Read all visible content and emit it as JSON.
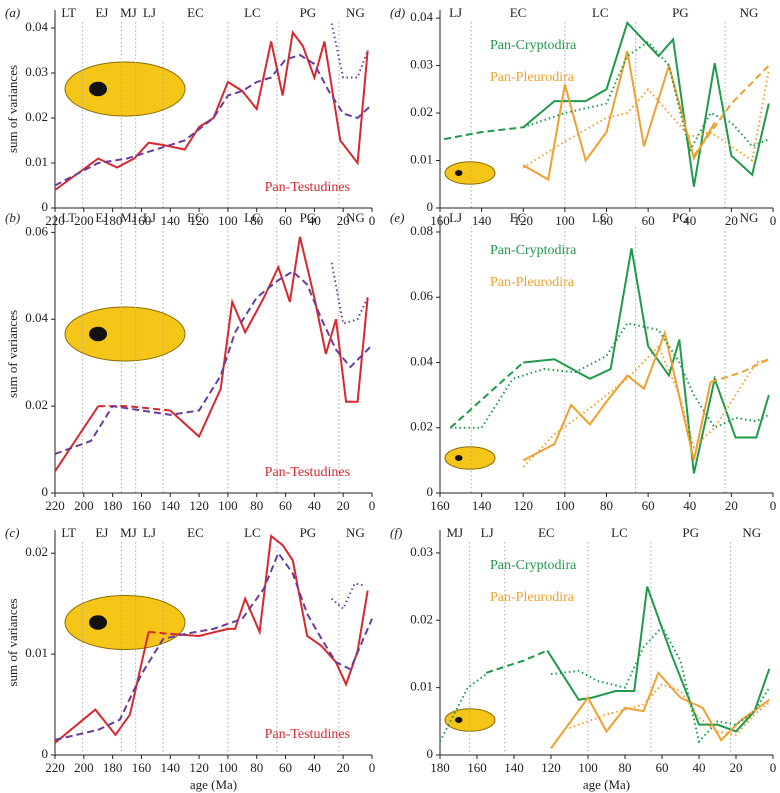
{
  "chart_data": [
    {
      "type": "line",
      "panel": "(a)",
      "ylabel": "sum of variances",
      "xlim": [
        220,
        0
      ],
      "xticks": [
        220,
        200,
        180,
        160,
        140,
        120,
        100,
        80,
        60,
        40,
        20,
        0
      ],
      "ylim": [
        0,
        0.044
      ],
      "yticks": [
        0,
        0.01,
        0.02,
        0.03,
        0.04
      ],
      "period_labels": [
        "LT",
        "EJ",
        "MJ",
        "LJ",
        "EC",
        "LC",
        "PG",
        "NG"
      ],
      "boundaries": [
        201,
        174,
        164,
        145,
        100,
        66,
        23
      ],
      "series": [
        {
          "name": "Pan-Testudines",
          "color": "#d7282f",
          "dash": "solid",
          "x": [
            220,
            190,
            177,
            165,
            155,
            145,
            130,
            120,
            110,
            100,
            90,
            80,
            70,
            62,
            55,
            48,
            40,
            33,
            22,
            10,
            3
          ],
          "values": [
            0.004,
            0.011,
            0.009,
            0.011,
            0.0145,
            0.014,
            0.013,
            0.018,
            0.02,
            0.028,
            0.026,
            0.022,
            0.037,
            0.025,
            0.039,
            0.036,
            0.029,
            0.037,
            0.015,
            0.01,
            0.035
          ]
        },
        {
          "color": "#6a3d9a",
          "dash": "dashed",
          "x": [
            220,
            190,
            170,
            150,
            130,
            110,
            100,
            90,
            80,
            70,
            60,
            50,
            40,
            30,
            20,
            10,
            0
          ],
          "values": [
            0.005,
            0.01,
            0.011,
            0.013,
            0.015,
            0.02,
            0.025,
            0.026,
            0.028,
            0.029,
            0.033,
            0.034,
            0.032,
            0.026,
            0.021,
            0.02,
            0.023
          ]
        },
        {
          "color": "#6a3d9a",
          "dash": "dotted",
          "x": [
            28,
            20,
            10,
            3
          ],
          "values": [
            0.041,
            0.029,
            0.029,
            0.035
          ]
        }
      ]
    },
    {
      "type": "line",
      "panel": "(b)",
      "ylabel": "sum of variances",
      "xlim": [
        220,
        0
      ],
      "xticks": [
        220,
        200,
        180,
        160,
        140,
        120,
        100,
        80,
        60,
        40,
        20,
        0
      ],
      "ylim": [
        0,
        0.064
      ],
      "yticks": [
        0,
        0.02,
        0.04,
        0.06
      ],
      "period_labels": [
        "LT",
        "EJ",
        "MJ",
        "LJ",
        "EC",
        "LC",
        "PG",
        "NG"
      ],
      "boundaries": [
        201,
        174,
        164,
        145,
        100,
        66,
        23
      ],
      "series": [
        {
          "name": "Pan-Testudines",
          "color": "#d7282f",
          "dash": "solid",
          "x": [
            220,
            190,
            165,
            140,
            120,
            105,
            97,
            88,
            75,
            65,
            57,
            50,
            40,
            32,
            25,
            18,
            10,
            3
          ],
          "values": [
            0.005,
            0.02,
            null,
            0.019,
            0.013,
            0.024,
            0.044,
            0.037,
            0.045,
            0.052,
            0.044,
            0.059,
            0.045,
            0.032,
            0.04,
            0.021,
            0.021,
            0.045
          ]
        },
        {
          "color": "#d7282f",
          "dash": "dashed",
          "x": [
            190,
            170,
            140
          ],
          "values": [
            0.02,
            0.02,
            0.019
          ]
        },
        {
          "color": "#6a3d9a",
          "dash": "dashed",
          "x": [
            220,
            195,
            180,
            160,
            140,
            120,
            105,
            95,
            80,
            65,
            55,
            45,
            35,
            25,
            15,
            0
          ],
          "values": [
            0.009,
            0.012,
            0.02,
            0.019,
            0.018,
            0.019,
            0.027,
            0.037,
            0.045,
            0.049,
            0.051,
            0.048,
            0.04,
            0.033,
            0.029,
            0.034
          ]
        },
        {
          "color": "#6a3d9a",
          "dash": "dotted",
          "x": [
            28,
            20,
            10,
            3
          ],
          "values": [
            0.053,
            0.039,
            0.04,
            0.045
          ]
        }
      ]
    },
    {
      "type": "line",
      "panel": "(c)",
      "ylabel": "sum of variances",
      "xlabel": "age (Ma)",
      "xlim": [
        220,
        0
      ],
      "xticks": [
        220,
        200,
        180,
        160,
        140,
        120,
        100,
        80,
        60,
        40,
        20,
        0
      ],
      "ylim": [
        0,
        0.0223
      ],
      "yticks": [
        0,
        0.01,
        0.02
      ],
      "period_labels": [
        "LT",
        "EJ",
        "MJ",
        "LJ",
        "EC",
        "LC",
        "PG",
        "NG"
      ],
      "boundaries": [
        201,
        174,
        164,
        145,
        100,
        66,
        23
      ],
      "series": [
        {
          "name": "Pan-Testudines",
          "color": "#d7282f",
          "dash": "solid",
          "x": [
            220,
            192,
            178,
            168,
            155,
            148,
            140,
            120,
            100,
            95,
            88,
            78,
            70,
            62,
            55,
            45,
            35,
            25,
            18,
            10,
            3
          ],
          "values": [
            0.0012,
            0.0045,
            0.002,
            0.004,
            0.0122,
            null,
            0.012,
            0.0118,
            0.0125,
            0.0125,
            0.0155,
            0.0122,
            0.0217,
            0.0208,
            0.0193,
            0.0118,
            0.0108,
            0.0092,
            0.007,
            0.0103,
            0.0163
          ]
        },
        {
          "color": "#d7282f",
          "dash": "dashed",
          "x": [
            155,
            140
          ],
          "values": [
            0.0122,
            0.012
          ]
        },
        {
          "color": "#6a3d9a",
          "dash": "dashed",
          "x": [
            220,
            190,
            175,
            160,
            145,
            130,
            110,
            90,
            75,
            65,
            55,
            45,
            35,
            25,
            15,
            0
          ],
          "values": [
            0.0015,
            0.0025,
            0.0035,
            0.008,
            0.0115,
            0.012,
            0.0125,
            0.0135,
            0.0165,
            0.02,
            0.018,
            0.014,
            0.0115,
            0.0092,
            0.0085,
            0.0135
          ]
        },
        {
          "color": "#6a3d9a",
          "dash": "dotted",
          "x": [
            28,
            20,
            12,
            5
          ],
          "values": [
            0.0155,
            0.0145,
            0.017,
            0.0168
          ]
        }
      ]
    },
    {
      "type": "line",
      "panel": "(d)",
      "xlim": [
        160,
        0
      ],
      "xticks": [
        160,
        140,
        120,
        100,
        80,
        60,
        40,
        20,
        0
      ],
      "ylim": [
        0,
        0.0417
      ],
      "yticks": [
        0,
        0.01,
        0.02,
        0.03,
        0.04
      ],
      "period_labels": [
        "LJ",
        "EC",
        "LC",
        "PG",
        "NG"
      ],
      "boundaries": [
        145,
        100,
        66,
        23
      ],
      "series": [
        {
          "name": "Pan-Cryptodira",
          "color": "#1f9a4b",
          "dash": "solid",
          "x": [
            120,
            105,
            90,
            80,
            70,
            55,
            48,
            38,
            28,
            20,
            10,
            2
          ],
          "values": [
            0.017,
            0.0225,
            0.0225,
            0.025,
            0.039,
            0.032,
            0.0355,
            0.0045,
            0.0305,
            0.011,
            0.007,
            0.022
          ]
        },
        {
          "name": "Pan-Pleurodira",
          "color": "#f0a030",
          "dash": "solid",
          "x": [
            120,
            108,
            100,
            90,
            80,
            70,
            62,
            50,
            38,
            28
          ],
          "values": [
            0.009,
            0.006,
            0.026,
            0.01,
            0.016,
            0.033,
            0.013,
            0.03,
            0.0105,
            0.018
          ]
        },
        {
          "color": "#1f9a4b",
          "dash": "dashed",
          "x": [
            158,
            140,
            120
          ],
          "values": [
            0.0145,
            0.016,
            0.017
          ]
        },
        {
          "color": "#1f9a4b",
          "dash": "dotted",
          "x": [
            120,
            100,
            80,
            70,
            60,
            50,
            40,
            30,
            20,
            10,
            2
          ],
          "values": [
            0.017,
            0.02,
            0.022,
            0.032,
            0.035,
            0.03,
            0.012,
            0.02,
            0.018,
            0.013,
            0.0145
          ]
        },
        {
          "color": "#f0a030",
          "dash": "dashed",
          "x": [
            38,
            20,
            2
          ],
          "values": [
            0.011,
            0.022,
            0.03
          ]
        },
        {
          "color": "#f0a030",
          "dash": "dotted",
          "x": [
            120,
            100,
            80,
            70,
            60,
            50,
            40,
            30,
            20,
            10,
            2
          ],
          "values": [
            0.0085,
            0.014,
            0.019,
            0.02,
            0.025,
            0.02,
            0.015,
            0.016,
            0.013,
            0.01,
            0.029
          ]
        }
      ]
    },
    {
      "type": "line",
      "panel": "(e)",
      "xlim": [
        160,
        0
      ],
      "xticks": [
        160,
        140,
        120,
        100,
        80,
        60,
        40,
        20,
        0
      ],
      "ylim": [
        0,
        0.0852
      ],
      "yticks": [
        0,
        0.02,
        0.04,
        0.06,
        0.08
      ],
      "period_labels": [
        "LJ",
        "EC",
        "LC",
        "PG",
        "NG"
      ],
      "boundaries": [
        145,
        100,
        66,
        23
      ],
      "series": [
        {
          "name": "Pan-Cryptodira",
          "color": "#1f9a4b",
          "dash": "solid",
          "x": [
            120,
            105,
            88,
            78,
            68,
            60,
            50,
            45,
            38,
            28,
            18,
            8,
            2
          ],
          "values": [
            0.04,
            0.041,
            0.035,
            0.038,
            0.075,
            0.045,
            0.036,
            0.047,
            0.006,
            0.035,
            0.017,
            0.017,
            0.03
          ]
        },
        {
          "name": "Pan-Pleurodira",
          "color": "#f0a030",
          "dash": "solid",
          "x": [
            120,
            105,
            97,
            88,
            80,
            70,
            62,
            52,
            38,
            30
          ],
          "values": [
            0.01,
            0.015,
            0.027,
            0.021,
            0.028,
            0.036,
            0.032,
            0.049,
            0.01,
            0.034
          ]
        },
        {
          "color": "#1f9a4b",
          "dash": "dashed",
          "x": [
            155,
            120
          ],
          "values": [
            0.02,
            0.04
          ]
        },
        {
          "color": "#1f9a4b",
          "dash": "dotted",
          "x": [
            155,
            140,
            125,
            110,
            95,
            80,
            70,
            55,
            45,
            38,
            28,
            18,
            8,
            2
          ],
          "values": [
            0.02,
            0.02,
            0.035,
            0.038,
            0.037,
            0.042,
            0.052,
            0.05,
            0.04,
            0.03,
            0.02,
            0.023,
            0.022,
            0.024
          ]
        },
        {
          "color": "#f0a030",
          "dash": "dashed",
          "x": [
            30,
            15,
            2
          ],
          "values": [
            0.034,
            0.037,
            0.041
          ]
        },
        {
          "color": "#f0a030",
          "dash": "dotted",
          "x": [
            120,
            105,
            90,
            70,
            55,
            45,
            38,
            28,
            18,
            8,
            2
          ],
          "values": [
            0.008,
            0.018,
            0.025,
            0.035,
            0.045,
            0.03,
            0.014,
            0.02,
            0.03,
            0.04,
            0.041
          ]
        }
      ]
    },
    {
      "type": "line",
      "panel": "(f)",
      "xlabel": "age (Ma)",
      "xlim": [
        180,
        0
      ],
      "xticks": [
        180,
        160,
        140,
        120,
        100,
        80,
        60,
        40,
        20,
        0
      ],
      "ylim": [
        0,
        0.0334
      ],
      "yticks": [
        0,
        0.01,
        0.02,
        0.03
      ],
      "period_labels": [
        "MJ",
        "LJ",
        "EC",
        "LC",
        "PG",
        "NG"
      ],
      "boundaries": [
        164,
        145,
        100,
        66,
        23
      ],
      "series": [
        {
          "name": "Pan-Cryptodira",
          "color": "#1f9a4b",
          "dash": "solid",
          "x": [
            122,
            105,
            98,
            85,
            75,
            68,
            55,
            40,
            30,
            20,
            10,
            2
          ],
          "values": [
            0.0155,
            0.0082,
            0.0085,
            0.0095,
            0.0095,
            0.025,
            0.015,
            0.0045,
            0.0045,
            0.0035,
            0.0065,
            0.0128
          ]
        },
        {
          "name": "Pan-Pleurodira",
          "color": "#f0a030",
          "dash": "solid",
          "x": [
            120,
            100,
            90,
            80,
            70,
            62,
            50,
            38,
            28,
            18,
            2
          ],
          "values": [
            0.001,
            0.0085,
            0.0035,
            0.007,
            0.0065,
            0.0122,
            0.0085,
            0.007,
            0.0022,
            0.005,
            0.0082
          ]
        },
        {
          "color": "#1f9a4b",
          "dash": "dashed",
          "x": [
            155,
            135,
            122
          ],
          "values": [
            0.0122,
            0.014,
            0.0155
          ]
        },
        {
          "color": "#1f9a4b",
          "dash": "dotted",
          "x": [
            180,
            165,
            155,
            130,
            120,
            105,
            95,
            80,
            70,
            60,
            50,
            40,
            30,
            20,
            10,
            2
          ],
          "values": [
            0.002,
            0.01,
            0.012,
            null,
            0.012,
            0.0125,
            0.011,
            0.01,
            0.016,
            0.019,
            0.014,
            0.002,
            0.005,
            0.0045,
            0.0065,
            0.01
          ]
        },
        {
          "color": "#f0a030",
          "dash": "dotted",
          "x": [
            110,
            90,
            70,
            60,
            50,
            40,
            30,
            20,
            10,
            2
          ],
          "values": [
            0.004,
            0.006,
            0.0075,
            0.0105,
            0.0095,
            0.0055,
            0.0035,
            0.003,
            0.006,
            0.0078
          ]
        }
      ]
    }
  ]
}
